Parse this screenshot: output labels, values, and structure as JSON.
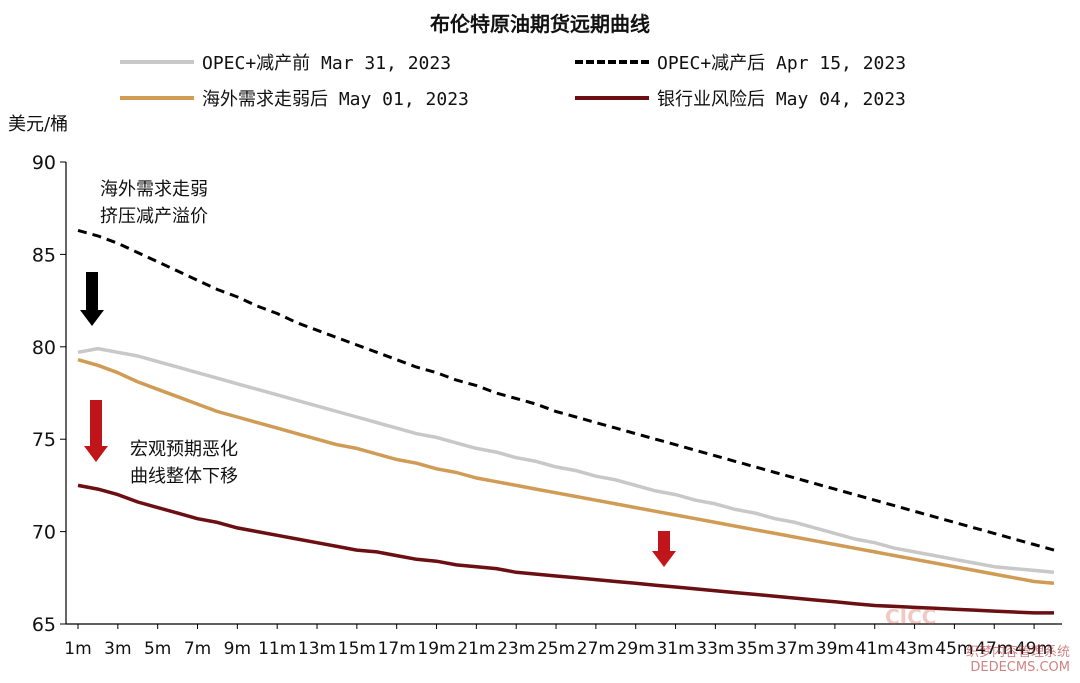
{
  "chart_data": {
    "type": "line",
    "title": "布伦特原油期货远期曲线",
    "ylabel": "美元/桶",
    "ylim": [
      65,
      90
    ],
    "yticks": [
      65,
      70,
      75,
      80,
      85,
      90
    ],
    "x_ticklabels": [
      "1m",
      "3m",
      "5m",
      "7m",
      "9m",
      "11m",
      "13m",
      "15m",
      "17m",
      "19m",
      "21m",
      "23m",
      "25m",
      "27m",
      "29m",
      "31m",
      "33m",
      "35m",
      "37m",
      "39m",
      "41m",
      "43m",
      "45m",
      "47m",
      "49m"
    ],
    "x": [
      1,
      2,
      3,
      4,
      5,
      6,
      7,
      8,
      9,
      10,
      11,
      12,
      13,
      14,
      15,
      16,
      17,
      18,
      19,
      20,
      21,
      22,
      23,
      24,
      25,
      26,
      27,
      28,
      29,
      30,
      31,
      32,
      33,
      34,
      35,
      36,
      37,
      38,
      39,
      40,
      41,
      42,
      43,
      44,
      45,
      46,
      47,
      48,
      49,
      50
    ],
    "series": [
      {
        "name": "OPEC+减产前 Mar 31, 2023",
        "color": "#c8c8c8",
        "dash": "solid",
        "values": [
          79.7,
          79.9,
          79.7,
          79.5,
          79.2,
          78.9,
          78.6,
          78.3,
          78.0,
          77.7,
          77.4,
          77.1,
          76.8,
          76.5,
          76.2,
          75.9,
          75.6,
          75.3,
          75.1,
          74.8,
          74.5,
          74.3,
          74.0,
          73.8,
          73.5,
          73.3,
          73.0,
          72.8,
          72.5,
          72.2,
          72.0,
          71.7,
          71.5,
          71.2,
          71.0,
          70.7,
          70.5,
          70.2,
          69.9,
          69.6,
          69.4,
          69.1,
          68.9,
          68.7,
          68.5,
          68.3,
          68.1,
          68.0,
          67.9,
          67.8
        ]
      },
      {
        "name": "OPEC+减产后 Apr 15, 2023",
        "color": "#000000",
        "dash": "dashed",
        "values": [
          86.3,
          86.0,
          85.6,
          85.1,
          84.6,
          84.1,
          83.6,
          83.1,
          82.7,
          82.2,
          81.8,
          81.3,
          80.9,
          80.5,
          80.1,
          79.7,
          79.3,
          78.9,
          78.6,
          78.2,
          77.9,
          77.5,
          77.2,
          76.9,
          76.5,
          76.2,
          75.9,
          75.6,
          75.3,
          75.0,
          74.7,
          74.4,
          74.1,
          73.8,
          73.5,
          73.2,
          72.9,
          72.6,
          72.3,
          72.0,
          71.7,
          71.4,
          71.1,
          70.8,
          70.5,
          70.2,
          69.9,
          69.6,
          69.3,
          69.0
        ]
      },
      {
        "name": "海外需求走弱后 May 01, 2023",
        "color": "#d09b55",
        "dash": "solid",
        "values": [
          79.3,
          79.0,
          78.6,
          78.1,
          77.7,
          77.3,
          76.9,
          76.5,
          76.2,
          75.9,
          75.6,
          75.3,
          75.0,
          74.7,
          74.5,
          74.2,
          73.9,
          73.7,
          73.4,
          73.2,
          72.9,
          72.7,
          72.5,
          72.3,
          72.1,
          71.9,
          71.7,
          71.5,
          71.3,
          71.1,
          70.9,
          70.7,
          70.5,
          70.3,
          70.1,
          69.9,
          69.7,
          69.5,
          69.3,
          69.1,
          68.9,
          68.7,
          68.5,
          68.3,
          68.1,
          67.9,
          67.7,
          67.5,
          67.3,
          67.2
        ]
      },
      {
        "name": "银行业风险后 May 04, 2023",
        "color": "#6b0f12",
        "dash": "solid",
        "values": [
          72.5,
          72.3,
          72.0,
          71.6,
          71.3,
          71.0,
          70.7,
          70.5,
          70.2,
          70.0,
          69.8,
          69.6,
          69.4,
          69.2,
          69.0,
          68.9,
          68.7,
          68.5,
          68.4,
          68.2,
          68.1,
          68.0,
          67.8,
          67.7,
          67.6,
          67.5,
          67.4,
          67.3,
          67.2,
          67.1,
          67.0,
          66.9,
          66.8,
          66.7,
          66.6,
          66.5,
          66.4,
          66.3,
          66.2,
          66.1,
          66.0,
          65.95,
          65.9,
          65.85,
          65.8,
          65.75,
          65.7,
          65.65,
          65.6,
          65.6
        ]
      }
    ],
    "annotations": [
      {
        "lines": [
          "海外需求走弱",
          "挤压减产溢价"
        ],
        "arrow_color": "#000000"
      },
      {
        "lines": [
          "宏观预期恶化",
          "曲线整体下移"
        ],
        "arrow_color": "#c0151a"
      }
    ],
    "legend_position": "top",
    "grid": false
  },
  "watermark": {
    "logo": "CICC",
    "site": "织梦内容管理系统",
    "domain": "DEDECMS.COM"
  }
}
